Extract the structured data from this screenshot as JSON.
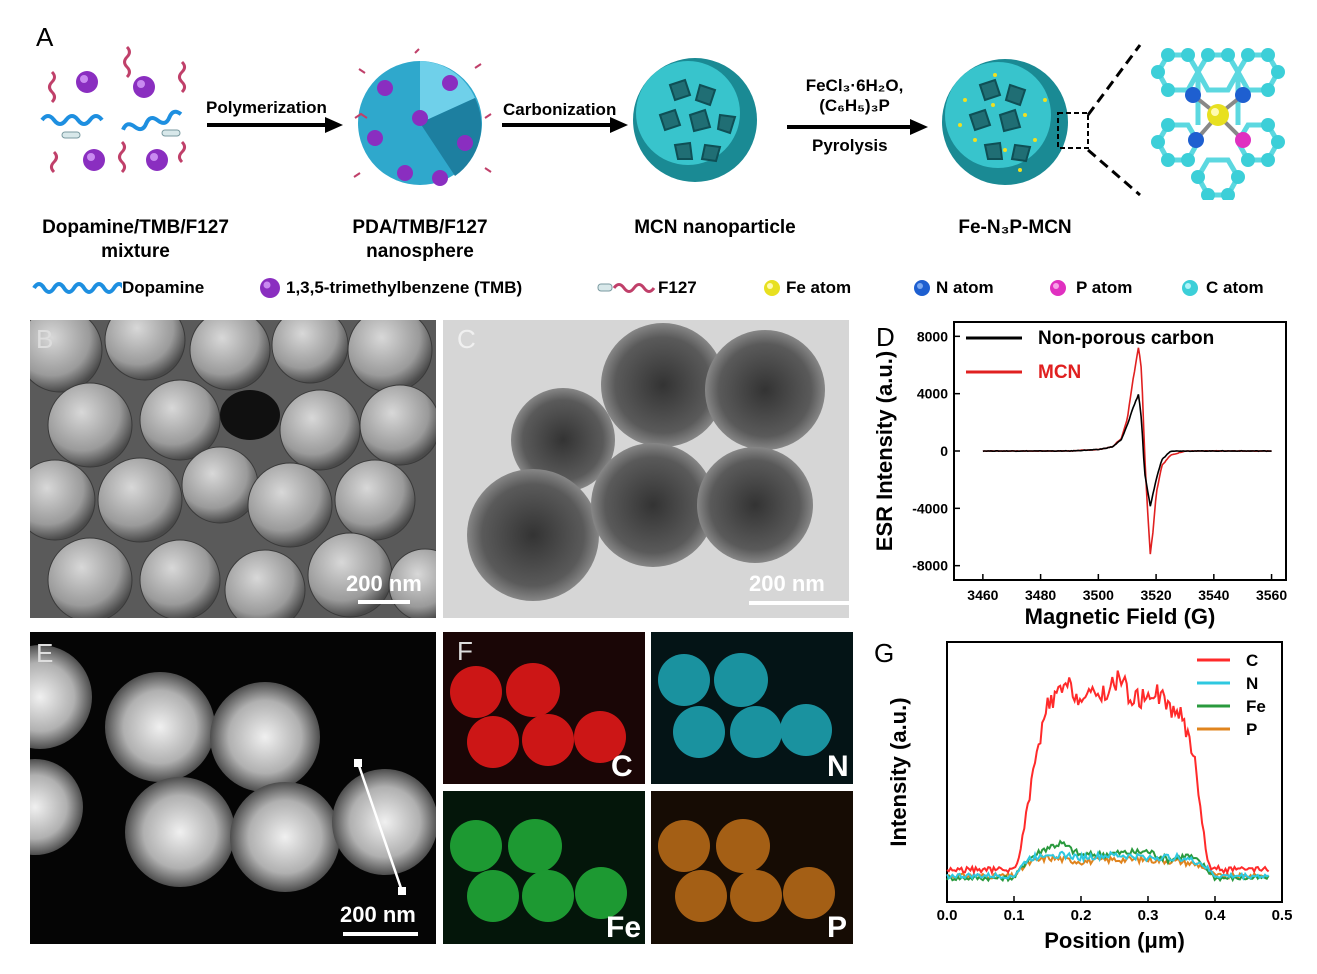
{
  "figure": {
    "panels": {
      "A": "A",
      "B": "B",
      "C": "C",
      "D": "D",
      "E": "E",
      "F": "F",
      "G": "G"
    },
    "schematic": {
      "step1_line1": "Dopamine/TMB/F127",
      "step1_line2": "mixture",
      "step2_line1": "PDA/TMB/F127",
      "step2_line2": "nanosphere",
      "step3": "MCN nanoparticle",
      "step4": "Fe-N₃P-MCN",
      "arrow1": "Polymerization",
      "arrow2": "Carbonization",
      "arrow3_line1": "FeCl₃·6H₂O,",
      "arrow3_line2": "(C₆H₅)₃P",
      "arrow3_line3": "Pyrolysis"
    },
    "legend": {
      "dopamine": "Dopamine",
      "tmb": "1,3,5-trimethylbenzene (TMB)",
      "f127": "F127",
      "fe": "Fe atom",
      "n": "N atom",
      "p": "P atom",
      "c": "C atom"
    },
    "scale_bars": {
      "B": "200 nm",
      "C": "200 nm",
      "E": "200 nm"
    },
    "map_labels": {
      "C": "C",
      "N": "N",
      "Fe": "Fe",
      "P": "P"
    },
    "colors": {
      "C": "#ff2a2a",
      "N": "#2ec8e0",
      "Fe": "#2fb84a",
      "P": "#e0841e",
      "black": "#000000",
      "mcn": "#e02020",
      "cyan": "#29b6c8"
    }
  },
  "chart_data": [
    {
      "panel": "D",
      "type": "line",
      "xlabel": "Magnetic Field (G)",
      "ylabel": "ESR Intensity (a.u.)",
      "xlim": [
        3450,
        3565
      ],
      "ylim": [
        -9000,
        9000
      ],
      "xticks": [
        3460,
        3480,
        3500,
        3520,
        3540,
        3560
      ],
      "yticks": [
        -8000,
        -4000,
        0,
        4000,
        8000
      ],
      "legend_position": "top-left",
      "series": [
        {
          "name": "Non-porous carbon",
          "color": "#000000",
          "x": [
            3460,
            3490,
            3500,
            3505,
            3508,
            3510,
            3512,
            3514,
            3515,
            3516,
            3518,
            3520,
            3522,
            3525,
            3530,
            3540,
            3560
          ],
          "y": [
            0,
            0,
            100,
            300,
            800,
            1800,
            3000,
            4000,
            2000,
            -1500,
            -3900,
            -2000,
            -600,
            0,
            0,
            0,
            0
          ]
        },
        {
          "name": "MCN",
          "color": "#e02020",
          "x": [
            3460,
            3490,
            3500,
            3505,
            3508,
            3510,
            3512,
            3514,
            3515,
            3516,
            3517,
            3518,
            3519,
            3520,
            3522,
            3525,
            3530,
            3540,
            3560
          ],
          "y": [
            0,
            0,
            100,
            300,
            900,
            2200,
            5000,
            7300,
            5500,
            0,
            -4000,
            -7200,
            -5500,
            -3000,
            -1000,
            -300,
            0,
            0,
            0
          ]
        }
      ]
    },
    {
      "panel": "G",
      "type": "line",
      "xlabel": "Position (μm)",
      "ylabel": "Intensity (a.u.)",
      "xlim": [
        0.0,
        0.5
      ],
      "xticks": [
        0.0,
        0.1,
        0.2,
        0.3,
        0.4,
        0.5
      ],
      "legend_position": "top-right",
      "series": [
        {
          "name": "C",
          "color": "#ff2a2a",
          "x": [
            0.0,
            0.1,
            0.11,
            0.13,
            0.15,
            0.18,
            0.2,
            0.22,
            0.24,
            0.26,
            0.27,
            0.29,
            0.31,
            0.33,
            0.35,
            0.37,
            0.38,
            0.39,
            0.41,
            0.48
          ],
          "y": [
            0.05,
            0.05,
            0.15,
            0.55,
            0.85,
            0.95,
            0.88,
            0.9,
            0.92,
            1.0,
            0.9,
            0.88,
            0.93,
            0.85,
            0.8,
            0.6,
            0.3,
            0.07,
            0.05,
            0.05
          ]
        },
        {
          "name": "N",
          "color": "#2ec8e0",
          "x": [
            0.0,
            0.1,
            0.12,
            0.15,
            0.2,
            0.25,
            0.3,
            0.35,
            0.38,
            0.4,
            0.48
          ],
          "y": [
            0.02,
            0.02,
            0.1,
            0.13,
            0.11,
            0.12,
            0.11,
            0.11,
            0.08,
            0.02,
            0.02
          ]
        },
        {
          "name": "Fe",
          "color": "#2a9a3e",
          "x": [
            0.0,
            0.1,
            0.12,
            0.15,
            0.17,
            0.2,
            0.25,
            0.3,
            0.33,
            0.36,
            0.38,
            0.4,
            0.48
          ],
          "y": [
            0.01,
            0.01,
            0.1,
            0.16,
            0.18,
            0.12,
            0.13,
            0.14,
            0.1,
            0.12,
            0.08,
            0.01,
            0.01
          ]
        },
        {
          "name": "P",
          "color": "#e0841e",
          "x": [
            0.0,
            0.1,
            0.12,
            0.15,
            0.2,
            0.25,
            0.3,
            0.35,
            0.38,
            0.4,
            0.48
          ],
          "y": [
            0.02,
            0.02,
            0.08,
            0.11,
            0.09,
            0.1,
            0.1,
            0.09,
            0.07,
            0.02,
            0.02
          ]
        }
      ]
    }
  ]
}
